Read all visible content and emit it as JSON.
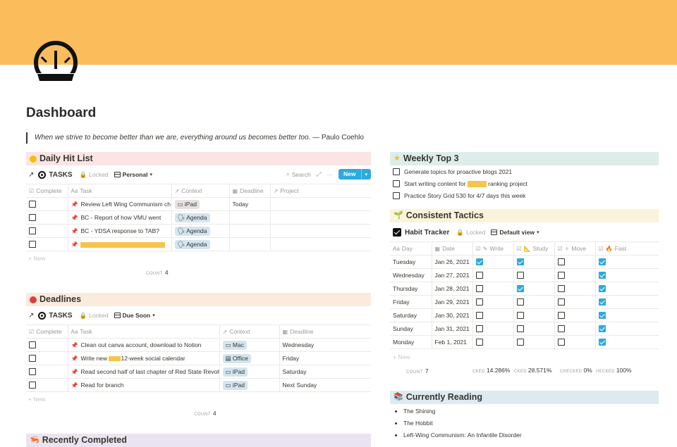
{
  "page": {
    "title": "Dashboard",
    "quote_text": "When we strive to become better than we are, everything around us becomes better too.",
    "quote_author": "— Paulo Coehlo",
    "cover_color": "#fbbd5c",
    "icon": "gauge-icon"
  },
  "hitlist": {
    "heading": "Daily Hit List",
    "db": "TASKS",
    "locked": "Locked",
    "view": "Personal",
    "search": "Search",
    "new_btn": "New",
    "columns": [
      "Complete",
      "Task",
      "Context",
      "Deadline",
      "Project"
    ],
    "rows": [
      {
        "task": "Review Left Wing Communism ch",
        "context": "iPad",
        "deadline": "Today"
      },
      {
        "task": "BC - Report of how VMU went",
        "context": "Agenda",
        "deadline": ""
      },
      {
        "task": "BC - YDSA response to TAB?",
        "context": "Agenda",
        "deadline": ""
      },
      {
        "task": "",
        "context": "Agenda",
        "deadline": ""
      }
    ],
    "new_row": "New",
    "count_label": "COUNT",
    "count": "4"
  },
  "deadlines": {
    "heading": "Deadlines",
    "db": "TASKS",
    "locked": "Locked",
    "view": "Due Soon",
    "columns": [
      "Complete",
      "Task",
      "Context",
      "Deadline"
    ],
    "rows": [
      {
        "task": "Clean out canva account, download to Notion",
        "context": "Mac",
        "deadline": "Wednesday"
      },
      {
        "task_a": "Write new",
        "task_b": "12-week social calendar",
        "context": "Office",
        "deadline": "Friday"
      },
      {
        "task": "Read second half of last chapter of Red State Revolt",
        "context": "iPad",
        "deadline": "Saturday"
      },
      {
        "task": "Read for branch",
        "context": "iPad",
        "deadline": "Next Sunday"
      }
    ],
    "new_row": "New",
    "count_label": "COUNT",
    "count": "4"
  },
  "recent": {
    "heading": "Recently Completed"
  },
  "weekly": {
    "heading": "Weekly Top 3",
    "items": [
      {
        "text": "Generate topics for proactive blogs 2021"
      },
      {
        "text_a": "Start writing content for",
        "text_b": "ranking project"
      },
      {
        "text": "Practice Story Grid 530 for 4/7 days this week"
      }
    ]
  },
  "tactics": {
    "heading": "Consistent Tactics",
    "db": "Habit Tracker",
    "locked": "Locked",
    "view": "Default view",
    "columns": [
      "Day",
      "Date",
      "Write",
      "Study",
      "Move",
      "Fast"
    ],
    "rows": [
      {
        "day": "Tuesday",
        "date": "Jan 26, 2021",
        "write": true,
        "study": true,
        "move": false,
        "fast": true
      },
      {
        "day": "Wednesday",
        "date": "Jan 27, 2021",
        "write": false,
        "study": false,
        "move": false,
        "fast": true
      },
      {
        "day": "Thursday",
        "date": "Jan 28, 2021",
        "write": false,
        "study": true,
        "move": false,
        "fast": true
      },
      {
        "day": "Friday",
        "date": "Jan 29, 2021",
        "write": false,
        "study": false,
        "move": false,
        "fast": true
      },
      {
        "day": "Saturday",
        "date": "Jan 30, 2021",
        "write": false,
        "study": false,
        "move": false,
        "fast": true
      },
      {
        "day": "Sunday",
        "date": "Jan 31, 2021",
        "write": false,
        "study": false,
        "move": false,
        "fast": true
      },
      {
        "day": "Monday",
        "date": "Feb 1, 2021",
        "write": false,
        "study": false,
        "move": false,
        "fast": true
      }
    ],
    "new_row": "New",
    "count_label": "COUNT",
    "count": "7",
    "calc": [
      {
        "label": "CKED",
        "value": "14.286%"
      },
      {
        "label": "CKED",
        "value": "28.571%"
      },
      {
        "label": "CHECKED",
        "value": "0%"
      },
      {
        "label": "HECKED",
        "value": "100%"
      }
    ]
  },
  "reading": {
    "heading": "Currently Reading",
    "books": [
      "The Shining",
      "The Hobbit",
      "Left-Wing Communism: An Infantile Disorder"
    ]
  },
  "colors": {
    "accent": "#2eaadc",
    "highlight": "#f5c54a"
  }
}
